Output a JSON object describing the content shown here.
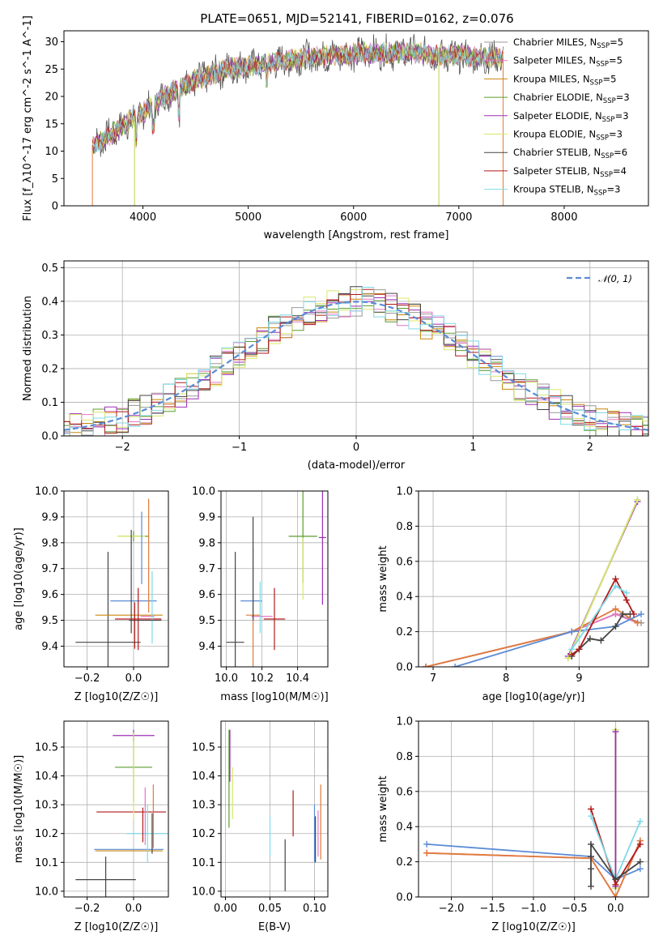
{
  "colors": {
    "Chabrier MILES": "#999999",
    "Salpeter MILES": "#e377c2",
    "Kroupa MILES": "#c8860a",
    "Chabrier ELODIE": "#5a9c2d",
    "Salpeter ELODIE": "#9b2fb5",
    "Kroupa ELODIE": "#d8e86a",
    "Chabrier STELIB": "#444444",
    "Salpeter STELIB": "#b01a1a",
    "Kroupa STELIB": "#7fd9e8",
    "orange": "#e07b39",
    "blue": "#5b8bd6",
    "olive": "#bcd24a"
  },
  "chart_data": [
    {
      "id": "spectrum",
      "type": "line",
      "title": "PLATE=0651, MJD=52141, FIBERID=0162, z=0.076",
      "xlabel": "wavelength [Angstrom, rest frame]",
      "ylabel": "Flux [f_λ10^-17 erg cm^-2 s^-1 A^-1]",
      "xlim": [
        3250,
        8800
      ],
      "ylim": [
        0,
        32
      ],
      "xticks": [
        "4000",
        "5000",
        "6000",
        "7000",
        "8000"
      ],
      "yticks": [
        "0",
        "5",
        "10",
        "15",
        "20",
        "25",
        "30"
      ],
      "legend_position": "right",
      "legend": [
        {
          "label": "Chabrier MILES, N_SSP=5",
          "base": "Chabrier MILES, N",
          "sub": "SSP",
          "tail": "=5"
        },
        {
          "label": "Salpeter MILES, N_SSP=5",
          "base": "Salpeter MILES, N",
          "sub": "SSP",
          "tail": "=5"
        },
        {
          "label": "Kroupa MILES, N_SSP=5",
          "base": "Kroupa MILES, N",
          "sub": "SSP",
          "tail": "=5"
        },
        {
          "label": "Chabrier ELODIE, N_SSP=3",
          "base": "Chabrier ELODIE, N",
          "sub": "SSP",
          "tail": "=3"
        },
        {
          "label": "Salpeter ELODIE, N_SSP=3",
          "base": "Salpeter ELODIE, N",
          "sub": "SSP",
          "tail": "=3"
        },
        {
          "label": "Kroupa ELODIE, N_SSP=3",
          "base": "Kroupa ELODIE, N",
          "sub": "SSP",
          "tail": "=3"
        },
        {
          "label": "Chabrier STELIB, N_SSP=6",
          "base": "Chabrier STELIB, N",
          "sub": "SSP",
          "tail": "=6"
        },
        {
          "label": "Salpeter STELIB, N_SSP=4",
          "base": "Salpeter STELIB, N",
          "sub": "SSP",
          "tail": "=4"
        },
        {
          "label": "Kroupa STELIB, N_SSP=3",
          "base": "Kroupa STELIB, N",
          "sub": "SSP",
          "tail": "=3"
        }
      ],
      "continuum": [
        [
          3520,
          11
        ],
        [
          3700,
          13
        ],
        [
          3900,
          16
        ],
        [
          4000,
          17
        ],
        [
          4200,
          20
        ],
        [
          4500,
          23
        ],
        [
          4800,
          25
        ],
        [
          5000,
          25.5
        ],
        [
          5200,
          26
        ],
        [
          5500,
          27
        ],
        [
          5800,
          27.5
        ],
        [
          6000,
          27.8
        ],
        [
          6300,
          28
        ],
        [
          6600,
          28
        ],
        [
          6800,
          27.5
        ],
        [
          7000,
          27.5
        ],
        [
          7200,
          27
        ],
        [
          7400,
          27.2
        ]
      ],
      "edges": {
        "x_start": 3520,
        "x_end": 7420,
        "drop_at": [
          3920,
          6810
        ]
      }
    },
    {
      "id": "residuals",
      "type": "line",
      "xlabel": "(data-model)/error",
      "ylabel": "Normed distribution",
      "xlim": [
        -2.5,
        2.5
      ],
      "ylim": [
        0,
        0.52
      ],
      "xticks": [
        "−2",
        "−1",
        "0",
        "1",
        "2"
      ],
      "yticks": [
        "0.0",
        "0.1",
        "0.2",
        "0.3",
        "0.4",
        "0.5"
      ],
      "legend_position": "top-right",
      "legend": [
        {
          "label": "𝒩(0, 1)"
        }
      ],
      "bin_width": 0.1
    },
    {
      "id": "age_vs_Z",
      "type": "scatter",
      "xlabel": "Z [log10(Z/Z☉)]",
      "ylabel": "age [log10(age/yr)]",
      "xlim": [
        -0.3,
        0.15
      ],
      "ylim": [
        9.32,
        10.0
      ],
      "xticks": [
        "−0.2",
        "0.0"
      ],
      "yticks": [
        "9.4",
        "9.5",
        "9.6",
        "9.7",
        "9.8",
        "9.9",
        "10.0"
      ],
      "points": [
        {
          "c": "Chabrier STELIB",
          "x": -0.11,
          "y": 9.415,
          "xe": 0.14,
          "ye": 0.35
        },
        {
          "c": "Kroupa MILES",
          "x": -0.02,
          "y": 9.52,
          "xe": 0.145,
          "ye": 0.0
        },
        {
          "c": "blue",
          "x": -0.0,
          "y": 9.575,
          "xe": 0.1,
          "ye": 0.0
        },
        {
          "c": "Chabrier ELODIE",
          "x": 0.0,
          "y": 9.825,
          "xe": 0.065,
          "ye": 0.02
        },
        {
          "c": "Kroupa ELODIE",
          "x": -0.01,
          "y": 9.825,
          "xe": 0.06,
          "ye": 0.0
        },
        {
          "c": "Salpeter STELIB",
          "x": 0.02,
          "y": 9.505,
          "xe": 0.1,
          "ye": 0.12
        },
        {
          "c": "blue",
          "x": 0.035,
          "y": 9.78,
          "xe": 0.0,
          "ye": 0.14
        },
        {
          "c": "Salpeter MILES",
          "x": 0.06,
          "y": 9.515,
          "xe": 0.03,
          "ye": 0.0
        },
        {
          "c": "orange",
          "x": 0.065,
          "y": 9.75,
          "xe": 0.0,
          "ye": 0.22
        },
        {
          "c": "Kroupa STELIB",
          "x": 0.08,
          "y": 9.55,
          "xe": 0.0,
          "ye": 0.14
        },
        {
          "c": "Chabrier STELIB",
          "x": 0.05,
          "y": 9.5,
          "xe": 0.07,
          "ye": 0.0
        },
        {
          "c": "Salpeter STELIB",
          "x": 0.005,
          "y": 9.48,
          "xe": 0.0,
          "ye": 0.09
        },
        {
          "c": "Chabrier STELIB",
          "x": -0.01,
          "y": 9.65,
          "xe": 0.0,
          "ye": 0.2
        }
      ]
    },
    {
      "id": "age_vs_mass",
      "type": "scatter",
      "xlabel": "mass [log10(M/M☉)]",
      "ylabel": "",
      "xlim": [
        9.97,
        10.57
      ],
      "ylim": [
        9.32,
        10.0
      ],
      "xticks": [
        "10.0",
        "10.2",
        "10.4"
      ],
      "yticks": [
        "9.4",
        "9.5",
        "9.6",
        "9.7",
        "9.8",
        "9.9",
        "10.0"
      ],
      "points": [
        {
          "c": "Chabrier STELIB",
          "x": 10.05,
          "y": 9.415,
          "xe": 0.05,
          "ye": 0.35
        },
        {
          "c": "blue",
          "x": 10.14,
          "y": 9.575,
          "xe": 0.06,
          "ye": 0.0
        },
        {
          "c": "orange",
          "x": 10.15,
          "y": 9.52,
          "xe": 0.04,
          "ye": 0.26
        },
        {
          "c": "Salpeter MILES",
          "x": 10.2,
          "y": 9.515,
          "xe": 0.06,
          "ye": 0.0
        },
        {
          "c": "Salpeter STELIB",
          "x": 10.27,
          "y": 9.505,
          "xe": 0.06,
          "ye": 0.12
        },
        {
          "c": "Kroupa STELIB",
          "x": 10.19,
          "y": 9.55,
          "xe": 0.0,
          "ye": 0.1
        },
        {
          "c": "Chabrier ELODIE",
          "x": 10.43,
          "y": 9.825,
          "xe": 0.08,
          "ye": 0.18
        },
        {
          "c": "Salpeter ELODIE",
          "x": 10.54,
          "y": 9.82,
          "xe": 0.02,
          "ye": 0.26
        },
        {
          "c": "Kroupa ELODIE",
          "x": 10.43,
          "y": 9.7,
          "xe": 0.0,
          "ye": 0.12
        },
        {
          "c": "Chabrier STELIB",
          "x": 10.15,
          "y": 9.7,
          "xe": 0.0,
          "ye": 0.2
        }
      ]
    },
    {
      "id": "weight_vs_age",
      "type": "line",
      "xlabel": "age [log10(age/yr)]",
      "ylabel": "mass weight",
      "xlim": [
        6.8,
        9.95
      ],
      "ylim": [
        0,
        1.0
      ],
      "xticks": [
        "7",
        "8",
        "9"
      ],
      "yticks": [
        "0.0",
        "0.2",
        "0.4",
        "0.6",
        "0.8",
        "1.0"
      ],
      "series": [
        {
          "c": "Chabrier MILES",
          "x": [
            6.9,
            8.9,
            9.5,
            9.85
          ],
          "y": [
            0.0,
            0.2,
            0.3,
            0.25
          ]
        },
        {
          "c": "Salpeter MILES",
          "x": [
            6.9,
            8.9,
            9.5,
            9.8
          ],
          "y": [
            0.0,
            0.2,
            0.3,
            0.25
          ]
        },
        {
          "c": "orange",
          "x": [
            6.9,
            8.9,
            9.5,
            9.8
          ],
          "y": [
            0.0,
            0.2,
            0.33,
            0.25
          ]
        },
        {
          "c": "blue",
          "x": [
            7.3,
            8.9,
            9.5,
            9.85
          ],
          "y": [
            0.0,
            0.2,
            0.23,
            0.3
          ]
        },
        {
          "c": "Chabrier ELODIE",
          "x": [
            8.85,
            9.8
          ],
          "y": [
            0.05,
            0.95
          ]
        },
        {
          "c": "Salpeter ELODIE",
          "x": [
            8.85,
            9.8
          ],
          "y": [
            0.06,
            0.94
          ]
        },
        {
          "c": "Kroupa ELODIE",
          "x": [
            8.85,
            9.8
          ],
          "y": [
            0.05,
            0.95
          ]
        },
        {
          "c": "Chabrier STELIB",
          "x": [
            8.9,
            9.0,
            9.15,
            9.3,
            9.5,
            9.6,
            9.7
          ],
          "y": [
            0.06,
            0.1,
            0.16,
            0.15,
            0.23,
            0.3,
            0.3
          ]
        },
        {
          "c": "Salpeter STELIB",
          "x": [
            8.9,
            9.0,
            9.5,
            9.65,
            9.75
          ],
          "y": [
            0.07,
            0.1,
            0.5,
            0.38,
            0.3
          ]
        },
        {
          "c": "Kroupa STELIB",
          "x": [
            8.9,
            9.5,
            9.65
          ],
          "y": [
            0.1,
            0.46,
            0.42
          ]
        }
      ]
    },
    {
      "id": "mass_vs_Z",
      "type": "scatter",
      "xlabel": "Z [log10(Z/Z☉)]",
      "ylabel": "mass [log10(M/M☉)]",
      "xlim": [
        -0.3,
        0.15
      ],
      "ylim": [
        9.98,
        10.59
      ],
      "xticks": [
        "−0.2",
        "0.0"
      ],
      "yticks": [
        "10.0",
        "10.1",
        "10.2",
        "10.3",
        "10.4",
        "10.5"
      ],
      "points": [
        {
          "c": "Chabrier STELIB",
          "x": -0.12,
          "y": 10.04,
          "xe": 0.13,
          "ye": 0.08
        },
        {
          "c": "Kroupa MILES",
          "x": -0.02,
          "y": 10.14,
          "xe": 0.145,
          "ye": 0.0
        },
        {
          "c": "blue",
          "x": -0.02,
          "y": 10.145,
          "xe": 0.15,
          "ye": 0.0
        },
        {
          "c": "Salpeter STELIB",
          "x": -0.01,
          "y": 10.275,
          "xe": 0.15,
          "ye": 0.0
        },
        {
          "c": "Chabrier ELODIE",
          "x": 0.0,
          "y": 10.43,
          "xe": 0.08,
          "ye": 0.12
        },
        {
          "c": "Salpeter ELODIE",
          "x": 0.0,
          "y": 10.54,
          "xe": 0.09,
          "ye": 0.02
        },
        {
          "c": "Kroupa ELODIE",
          "x": 0.0,
          "y": 10.4,
          "xe": 0.0,
          "ye": 0.15
        },
        {
          "c": "Kroupa STELIB",
          "x": 0.06,
          "y": 10.2,
          "xe": 0.09,
          "ye": 0.1
        },
        {
          "c": "Salpeter MILES",
          "x": 0.05,
          "y": 10.26,
          "xe": 0.0,
          "ye": 0.1
        },
        {
          "c": "orange",
          "x": 0.085,
          "y": 10.26,
          "xe": 0.0,
          "ye": 0.11
        },
        {
          "c": "Salpeter STELIB",
          "x": 0.04,
          "y": 10.23,
          "xe": 0.0,
          "ye": 0.06
        },
        {
          "c": "Chabrier STELIB",
          "x": 0.08,
          "y": 10.2,
          "xe": 0.0,
          "ye": 0.07
        }
      ]
    },
    {
      "id": "mass_vs_EBV",
      "type": "scatter",
      "xlabel": "E(B-V)",
      "ylabel": "",
      "xlim": [
        -0.005,
        0.115
      ],
      "ylim": [
        9.98,
        10.59
      ],
      "xticks": [
        "0.00",
        "0.05",
        "0.10"
      ],
      "yticks": [
        "10.0",
        "10.1",
        "10.2",
        "10.3",
        "10.4",
        "10.5"
      ],
      "points": [
        {
          "c": "Chabrier ELODIE",
          "x": 0.004,
          "y": 10.39,
          "xe": 0.0,
          "ye": 0.17
        },
        {
          "c": "Salpeter ELODIE",
          "x": 0.005,
          "y": 10.47,
          "xe": 0.0,
          "ye": 0.09
        },
        {
          "c": "Kroupa ELODIE",
          "x": 0.008,
          "y": 10.34,
          "xe": 0.0,
          "ye": 0.09
        },
        {
          "c": "Kroupa STELIB",
          "x": 0.05,
          "y": 10.19,
          "xe": 0.0,
          "ye": 0.07
        },
        {
          "c": "Chabrier STELIB",
          "x": 0.067,
          "y": 10.09,
          "xe": 0.0,
          "ye": 0.09
        },
        {
          "c": "Salpeter STELIB",
          "x": 0.076,
          "y": 10.27,
          "xe": 0.0,
          "ye": 0.08
        },
        {
          "c": "blue",
          "x": 0.1,
          "y": 10.2,
          "xe": 0.0,
          "ye": 0.1
        },
        {
          "c": "Salpeter MILES",
          "x": 0.104,
          "y": 10.2,
          "xe": 0.0,
          "ye": 0.08
        },
        {
          "c": "orange",
          "x": 0.107,
          "y": 10.24,
          "xe": 0.0,
          "ye": 0.13
        },
        {
          "c": "Chabrier STELIB",
          "x": 0.101,
          "y": 10.18,
          "xe": 0.0,
          "ye": 0.08
        }
      ]
    },
    {
      "id": "weight_vs_Z",
      "type": "line",
      "xlabel": "Z [log10(Z/Z☉)]",
      "ylabel": "mass weight",
      "xlim": [
        -2.4,
        0.4
      ],
      "ylim": [
        0,
        1.0
      ],
      "xticks": [
        "−2.0",
        "−1.5",
        "−1.0",
        "−0.5",
        "0.0"
      ],
      "yticks": [
        "0.0",
        "0.2",
        "0.4",
        "0.6",
        "0.8",
        "1.0"
      ],
      "series": [
        {
          "c": "blue",
          "x": [
            -2.3,
            -0.3,
            0.0,
            0.3
          ],
          "y": [
            0.3,
            0.23,
            0.1,
            0.16
          ]
        },
        {
          "c": "Salpeter MILES",
          "x": [
            -2.3,
            -0.3,
            0.0,
            0.3
          ],
          "y": [
            0.25,
            0.22,
            0.0,
            0.32
          ]
        },
        {
          "c": "orange",
          "x": [
            -2.3,
            -0.3,
            0.0,
            0.3
          ],
          "y": [
            0.25,
            0.22,
            0.0,
            0.32
          ]
        },
        {
          "c": "Chabrier ELODIE",
          "x": [
            0.0,
            0.0
          ],
          "y": [
            0.05,
            0.95
          ]
        },
        {
          "c": "Kroupa ELODIE",
          "x": [
            0.0,
            0.0
          ],
          "y": [
            0.05,
            0.95
          ]
        },
        {
          "c": "Salpeter ELODIE",
          "x": [
            0.0,
            0.0
          ],
          "y": [
            0.06,
            0.94
          ]
        },
        {
          "c": "Salpeter STELIB",
          "x": [
            -0.3,
            0.0,
            0.3
          ],
          "y": [
            0.5,
            0.07,
            0.3
          ]
        },
        {
          "c": "Kroupa STELIB",
          "x": [
            -0.3,
            0.0,
            0.3
          ],
          "y": [
            0.46,
            0.1,
            0.43
          ]
        },
        {
          "c": "Chabrier STELIB",
          "x": [
            -0.3,
            -0.3,
            -0.3,
            -0.3,
            0.0,
            0.3
          ],
          "y": [
            0.06,
            0.16,
            0.23,
            0.3,
            0.1,
            0.2
          ]
        }
      ]
    }
  ]
}
